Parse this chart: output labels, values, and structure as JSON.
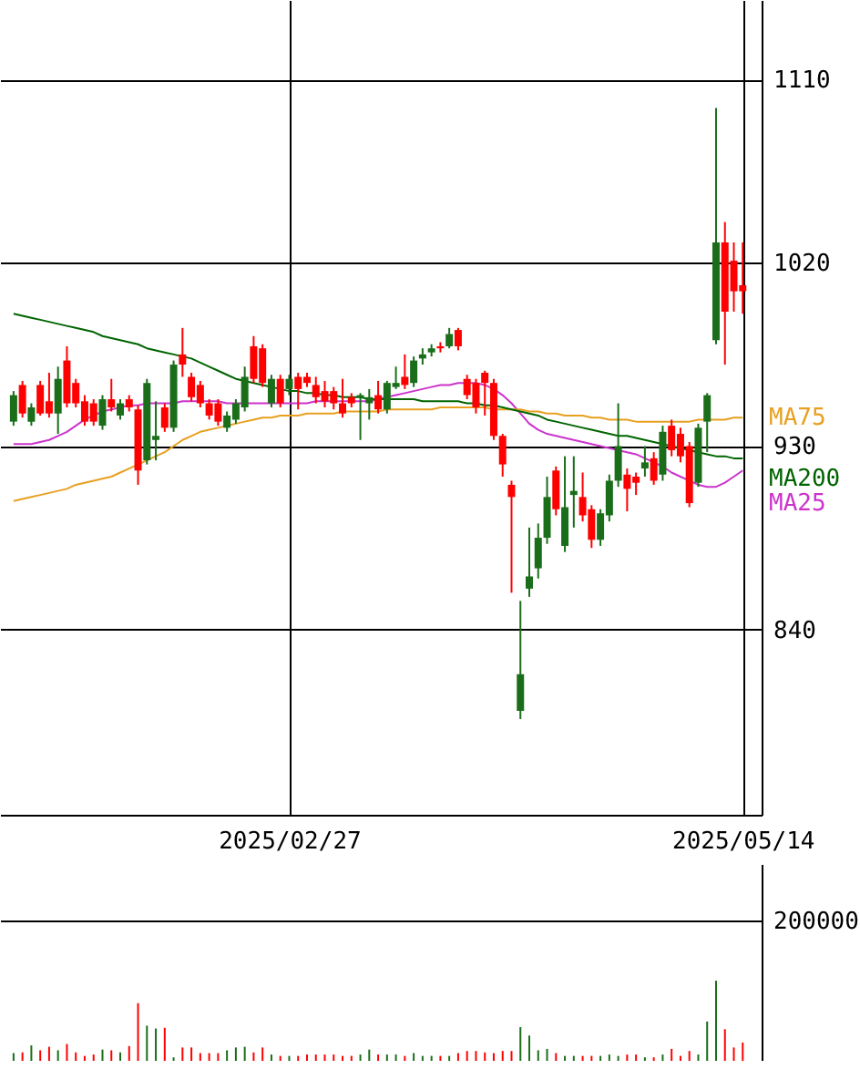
{
  "chart_data": [
    {
      "type": "candlestick",
      "categories": [
        null,
        null,
        null,
        null,
        null,
        null,
        null,
        null,
        null,
        null,
        null,
        null,
        null,
        null,
        null,
        null,
        null,
        null,
        null,
        null,
        null,
        null,
        null,
        null,
        null,
        null,
        null,
        null,
        null,
        null,
        null,
        "2025/02/27",
        null,
        null,
        null,
        null,
        null,
        null,
        null,
        null,
        null,
        null,
        null,
        null,
        null,
        null,
        null,
        null,
        null,
        null,
        null,
        null,
        null,
        null,
        null,
        null,
        null,
        null,
        null,
        null,
        null,
        null,
        null,
        null,
        null,
        null,
        null,
        null,
        null,
        null,
        null,
        null,
        null,
        null,
        null,
        null,
        null,
        null,
        null,
        null,
        null,
        null,
        "2025/05/14"
      ],
      "ohlc": [
        [
          942,
          957,
          940,
          955
        ],
        [
          960,
          962,
          944,
          946
        ],
        [
          942,
          951,
          940,
          949
        ],
        [
          960,
          962,
          945,
          946
        ],
        [
          952,
          966,
          944,
          946
        ],
        [
          946,
          969,
          936,
          963
        ],
        [
          972,
          979,
          949,
          951
        ],
        [
          961,
          963,
          949,
          951
        ],
        [
          952,
          955,
          940,
          942
        ],
        [
          951,
          953,
          940,
          942
        ],
        [
          940,
          955,
          938,
          953
        ],
        [
          953,
          963,
          947,
          949
        ],
        [
          945,
          953,
          943,
          951
        ],
        [
          953,
          955,
          947,
          949
        ],
        [
          948,
          950,
          911,
          918
        ],
        [
          923,
          963,
          921,
          961
        ],
        [
          933,
          952,
          923,
          935
        ],
        [
          949,
          951,
          937,
          939
        ],
        [
          939,
          972,
          937,
          970
        ],
        [
          975,
          988,
          964,
          970
        ],
        [
          964,
          966,
          952,
          954
        ],
        [
          960,
          962,
          949,
          951
        ],
        [
          951,
          953,
          943,
          945
        ],
        [
          951,
          953,
          940,
          942
        ],
        [
          939,
          947,
          937,
          945
        ],
        [
          943,
          953,
          941,
          951
        ],
        [
          949,
          969,
          947,
          964
        ],
        [
          979,
          984,
          961,
          963
        ],
        [
          978,
          980,
          959,
          961
        ],
        [
          951,
          965,
          949,
          963
        ],
        [
          963,
          965,
          949,
          951
        ],
        [
          958,
          965,
          955,
          963
        ],
        [
          964,
          966,
          948,
          958
        ],
        [
          964,
          966,
          959,
          961
        ],
        [
          960,
          964,
          951,
          954
        ],
        [
          957,
          962,
          949,
          952
        ],
        [
          957,
          959,
          948,
          951
        ],
        [
          951,
          963,
          944,
          946
        ],
        [
          954,
          956,
          949,
          951
        ],
        [
          954,
          956,
          933,
          955
        ],
        [
          951,
          958,
          943,
          954
        ],
        [
          955,
          962,
          946,
          948
        ],
        [
          948,
          962,
          946,
          961
        ],
        [
          959,
          969,
          958,
          961
        ],
        [
          964,
          975,
          958,
          960
        ],
        [
          961,
          974,
          959,
          972
        ],
        [
          973,
          978,
          970,
          975
        ],
        [
          976,
          980,
          974,
          978
        ],
        [
          979,
          981,
          976,
          978
        ],
        [
          979,
          988,
          978,
          985
        ],
        [
          987,
          988,
          977,
          979
        ],
        [
          963,
          965,
          953,
          955
        ],
        [
          961,
          963,
          946,
          949
        ],
        [
          966,
          967,
          945,
          961
        ],
        [
          961,
          963,
          933,
          935
        ],
        [
          935,
          936,
          915,
          921
        ],
        [
          911,
          913,
          858,
          905
        ],
        [
          800,
          854,
          796,
          818
        ],
        [
          860,
          890,
          856,
          866
        ],
        [
          870,
          892,
          865,
          885
        ],
        [
          885,
          915,
          882,
          905
        ],
        [
          918,
          920,
          896,
          899
        ],
        [
          881,
          925,
          878,
          900
        ],
        [
          906,
          925,
          890,
          908
        ],
        [
          905,
          917,
          893,
          896
        ],
        [
          899,
          901,
          880,
          884
        ],
        [
          884,
          899,
          881,
          897
        ],
        [
          896,
          916,
          893,
          913
        ],
        [
          913,
          951,
          910,
          930
        ],
        [
          916,
          919,
          898,
          909
        ],
        [
          915,
          917,
          906,
          912
        ],
        [
          919,
          930,
          915,
          922
        ],
        [
          924,
          927,
          911,
          913
        ],
        [
          916,
          940,
          913,
          937
        ],
        [
          940,
          943,
          925,
          928
        ],
        [
          936,
          939,
          922,
          925
        ],
        [
          930,
          932,
          900,
          902
        ],
        [
          912,
          941,
          910,
          939
        ],
        [
          942,
          956,
          927,
          955
        ],
        [
          982,
          1096,
          980,
          1030
        ],
        [
          1030,
          1040,
          970,
          996
        ],
        [
          1021,
          1030,
          996,
          1006
        ],
        [
          1009,
          1030,
          995,
          1006
        ]
      ],
      "colors": [
        "#1a6e1a",
        "#ff0000",
        "#1a6e1a",
        "#ff0000",
        "#ff0000",
        "#1a6e1a",
        "#ff0000",
        "#ff0000",
        "#ff0000",
        "#ff0000",
        "#1a6e1a",
        "#ff0000",
        "#1a6e1a",
        "#ff0000",
        "#ff0000",
        "#1a6e1a",
        "#1a6e1a",
        "#ff0000",
        "#1a6e1a",
        "#ff0000",
        "#ff0000",
        "#ff0000",
        "#ff0000",
        "#ff0000",
        "#1a6e1a",
        "#1a6e1a",
        "#1a6e1a",
        "#ff0000",
        "#ff0000",
        "#1a6e1a",
        "#ff0000",
        "#1a6e1a",
        "#ff0000",
        "#ff0000",
        "#ff0000",
        "#ff0000",
        "#ff0000",
        "#ff0000",
        "#ff0000",
        "#1a6e1a",
        "#1a6e1a",
        "#ff0000",
        "#1a6e1a",
        "#1a6e1a",
        "#ff0000",
        "#1a6e1a",
        "#1a6e1a",
        "#1a6e1a",
        "#ff0000",
        "#1a6e1a",
        "#ff0000",
        "#ff0000",
        "#ff0000",
        "#ff0000",
        "#ff0000",
        "#ff0000",
        "#ff0000",
        "#1a6e1a",
        "#1a6e1a",
        "#1a6e1a",
        "#1a6e1a",
        "#ff0000",
        "#1a6e1a",
        "#1a6e1a",
        "#ff0000",
        "#ff0000",
        "#1a6e1a",
        "#1a6e1a",
        "#1a6e1a",
        "#ff0000",
        "#ff0000",
        "#1a6e1a",
        "#ff0000",
        "#1a6e1a",
        "#ff0000",
        "#ff0000",
        "#ff0000",
        "#1a6e1a",
        "#1a6e1a",
        "#1a6e1a",
        "#ff0000",
        "#ff0000",
        "#ff0000"
      ],
      "series": [
        {
          "name": "MA25",
          "type": "line",
          "color": "#cc33cc",
          "values": [
            931,
            931,
            931,
            932,
            933,
            935,
            937,
            940,
            943,
            945,
            947,
            948,
            949,
            950,
            950,
            951,
            951,
            951,
            951,
            952,
            952,
            952,
            952,
            952,
            951,
            951,
            951,
            951,
            951,
            951,
            951,
            951,
            951,
            951,
            952,
            952,
            952,
            952,
            952,
            952,
            952,
            953,
            954,
            955,
            956,
            957,
            958,
            959,
            960,
            960,
            961,
            961,
            961,
            960,
            958,
            955,
            951,
            946,
            941,
            938,
            936,
            935,
            934,
            933,
            932,
            931,
            930,
            929,
            928,
            927,
            926,
            924,
            922,
            920,
            917,
            915,
            913,
            911,
            910,
            910,
            912,
            915,
            918
          ]
        },
        {
          "name": "MA75",
          "type": "line",
          "color": "#e8a020",
          "values": [
            903,
            904,
            905,
            906,
            907,
            908,
            909,
            911,
            912,
            913,
            914,
            915,
            917,
            919,
            921,
            923,
            925,
            927,
            930,
            933,
            935,
            937,
            938,
            939,
            940,
            941,
            942,
            943,
            944,
            944,
            945,
            945,
            945,
            946,
            946,
            946,
            946,
            947,
            947,
            947,
            947,
            947,
            948,
            948,
            948,
            948,
            948,
            948,
            949,
            949,
            949,
            949,
            949,
            949,
            948,
            948,
            948,
            948,
            947,
            947,
            946,
            946,
            945,
            945,
            945,
            944,
            944,
            943,
            943,
            943,
            942,
            942,
            942,
            942,
            942,
            942,
            942,
            943,
            943,
            943,
            943,
            944,
            944
          ]
        },
        {
          "name": "MA200",
          "type": "line",
          "color": "#006400",
          "values": [
            995,
            994,
            993,
            992,
            991,
            990,
            989,
            988,
            987,
            986,
            984,
            983,
            982,
            981,
            980,
            978,
            977,
            976,
            975,
            974,
            973,
            971,
            969,
            967,
            965,
            963,
            962,
            961,
            960,
            959,
            958,
            957,
            957,
            956,
            956,
            955,
            955,
            954,
            954,
            954,
            953,
            953,
            953,
            953,
            953,
            953,
            952,
            952,
            952,
            952,
            952,
            951,
            951,
            950,
            950,
            949,
            948,
            947,
            946,
            945,
            943,
            942,
            941,
            940,
            939,
            938,
            937,
            936,
            935,
            935,
            934,
            933,
            932,
            931,
            930,
            929,
            928,
            927,
            926,
            925,
            925,
            924,
            924
          ]
        }
      ],
      "ylim": [
        749,
        1149
      ],
      "yticks": [
        840,
        930,
        1020,
        1110
      ],
      "grid": true
    },
    {
      "type": "bar",
      "categories": [
        null,
        null,
        null,
        null,
        null,
        null,
        null,
        null,
        null,
        null,
        null,
        null,
        null,
        null,
        null,
        null,
        null,
        null,
        null,
        null,
        null,
        null,
        null,
        null,
        null,
        null,
        null,
        null,
        null,
        null,
        null,
        null,
        null,
        null,
        null,
        null,
        null,
        null,
        null,
        null,
        null,
        null,
        null,
        null,
        null,
        null,
        null,
        null,
        null,
        null,
        null,
        null,
        null,
        null,
        null,
        null,
        null,
        null,
        null,
        null,
        null,
        null,
        null,
        null,
        null,
        null,
        null,
        null,
        null,
        null,
        null,
        null,
        null,
        null,
        null,
        null,
        null,
        null,
        null,
        null,
        null,
        null,
        null
      ],
      "values": [
        11000,
        12000,
        22000,
        15000,
        20000,
        15000,
        24000,
        12000,
        7000,
        9000,
        16000,
        15000,
        12000,
        21000,
        82000,
        50000,
        46000,
        47000,
        5000,
        19000,
        19000,
        11000,
        11000,
        11000,
        15000,
        19000,
        20000,
        12000,
        19000,
        9000,
        7000,
        7000,
        7000,
        9000,
        9000,
        9000,
        9000,
        7000,
        7000,
        9000,
        16000,
        9000,
        9000,
        9000,
        7000,
        11000,
        7000,
        7000,
        7000,
        7000,
        11000,
        14000,
        14000,
        12000,
        11000,
        14000,
        14000,
        48000,
        36000,
        15000,
        17000,
        11000,
        7000,
        7000,
        7000,
        7000,
        7000,
        9000,
        7000,
        9000,
        9000,
        5000,
        5000,
        9000,
        17000,
        7000,
        14000,
        9000,
        56000,
        114000,
        45000,
        19000,
        26000
      ],
      "colors": [
        "#1a6e1a",
        "#ff0000",
        "#1a6e1a",
        "#ff0000",
        "#ff0000",
        "#1a6e1a",
        "#ff0000",
        "#ff0000",
        "#ff0000",
        "#ff0000",
        "#1a6e1a",
        "#ff0000",
        "#1a6e1a",
        "#ff0000",
        "#ff0000",
        "#1a6e1a",
        "#1a6e1a",
        "#ff0000",
        "#1a6e1a",
        "#ff0000",
        "#ff0000",
        "#ff0000",
        "#ff0000",
        "#ff0000",
        "#1a6e1a",
        "#1a6e1a",
        "#1a6e1a",
        "#ff0000",
        "#ff0000",
        "#1a6e1a",
        "#ff0000",
        "#1a6e1a",
        "#ff0000",
        "#ff0000",
        "#ff0000",
        "#ff0000",
        "#ff0000",
        "#ff0000",
        "#ff0000",
        "#1a6e1a",
        "#1a6e1a",
        "#ff0000",
        "#1a6e1a",
        "#1a6e1a",
        "#ff0000",
        "#1a6e1a",
        "#1a6e1a",
        "#1a6e1a",
        "#ff0000",
        "#1a6e1a",
        "#ff0000",
        "#ff0000",
        "#ff0000",
        "#ff0000",
        "#ff0000",
        "#ff0000",
        "#ff0000",
        "#1a6e1a",
        "#1a6e1a",
        "#1a6e1a",
        "#1a6e1a",
        "#ff0000",
        "#1a6e1a",
        "#1a6e1a",
        "#ff0000",
        "#ff0000",
        "#1a6e1a",
        "#1a6e1a",
        "#1a6e1a",
        "#ff0000",
        "#ff0000",
        "#1a6e1a",
        "#ff0000",
        "#1a6e1a",
        "#ff0000",
        "#ff0000",
        "#ff0000",
        "#1a6e1a",
        "#1a6e1a",
        "#1a6e1a",
        "#ff0000",
        "#ff0000",
        "#ff0000"
      ],
      "ylim": [
        0,
        280000
      ],
      "yticks": [
        {
          "value": 0,
          "label": null
        },
        200000
      ],
      "tick_labels": "y",
      "grid": "y"
    }
  ]
}
